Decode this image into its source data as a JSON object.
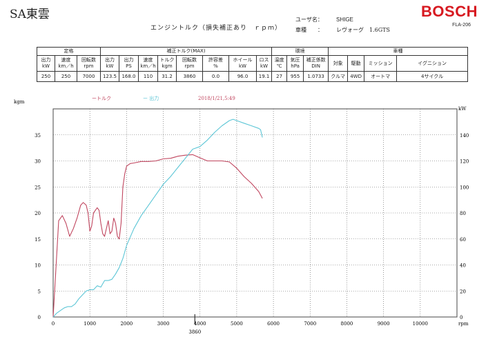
{
  "header": {
    "shop_name": "SA東雲",
    "brand": "BOSCH",
    "doc_id": "FLA-206",
    "title": "エンジントルク（損失補正あり　ｒｐｍ）",
    "user_label": "ユーザ名：",
    "user_name": "SHIGE",
    "vehicle_label": "車種　　：",
    "vehicle_name": "レヴォーグ　1.6GTS"
  },
  "table": {
    "groups": [
      "定格",
      "補正トルク(MAX)",
      "環境",
      "車種"
    ],
    "headers": [
      "出力\nkW",
      "速度\nkm／h",
      "回転数\nrpm",
      "出力\nkW",
      "出力\nPS",
      "速度\nkm／h",
      "トルク\nkgm",
      "回転数\nrpm",
      "許容差\n%",
      "ホイール\nkW",
      "ロス\nkW",
      "温度\n℃",
      "気圧\nhPa",
      "補正係数\nDIN",
      "対象",
      "駆動",
      "ミッション",
      "イグニション"
    ],
    "values": [
      "250",
      "250",
      "7000",
      "123.5",
      "168.0",
      "110",
      "31.2",
      "3860",
      "0.0",
      "96.0",
      "19.1",
      "27",
      "955",
      "1.0733",
      "クルマ",
      "4WD",
      "オートマ",
      "4サイクル"
    ]
  },
  "chart_data": {
    "type": "line",
    "legend": [
      {
        "label": "ートルク",
        "color": "#c0455e"
      },
      {
        "label": "ー 出力",
        "color": "#5cc6d6"
      }
    ],
    "timestamp": "2018/1/21,5:49",
    "xlabel": "rpm",
    "ylabel_left": "kgm",
    "ylabel_right": "kW",
    "xlim": [
      0,
      11000
    ],
    "ylim_left": [
      0,
      40
    ],
    "ylim_right": [
      0,
      160
    ],
    "x_ticks": [
      0,
      1000,
      2000,
      3000,
      4000,
      5000,
      6000,
      7000,
      8000,
      9000,
      10000
    ],
    "y_ticks_left": [
      0,
      5,
      10,
      15,
      20,
      25,
      30,
      35
    ],
    "y_ticks_right": [
      0,
      20,
      40,
      60,
      80,
      100,
      120,
      140
    ],
    "marker_rpm": "3860",
    "series": [
      {
        "name": "トルク",
        "axis": "left",
        "color": "#c0455e",
        "x": [
          0,
          150,
          250,
          350,
          450,
          550,
          650,
          750,
          820,
          900,
          950,
          1000,
          1050,
          1100,
          1200,
          1250,
          1300,
          1350,
          1400,
          1450,
          1500,
          1550,
          1600,
          1650,
          1700,
          1750,
          1800,
          1850,
          1900,
          1950,
          2000,
          2100,
          2200,
          2400,
          2600,
          2800,
          3000,
          3200,
          3400,
          3600,
          3800,
          4000,
          4200,
          4400,
          4600,
          4800,
          5000,
          5200,
          5400,
          5600,
          5700
        ],
        "y": [
          0,
          18.5,
          19.5,
          18,
          15.5,
          17,
          19,
          21.5,
          22,
          21.5,
          20,
          16.5,
          17.5,
          20,
          21,
          20.5,
          18,
          16,
          15.5,
          17,
          18.5,
          16,
          16.5,
          19,
          18,
          15.5,
          15,
          18,
          25,
          27.5,
          29,
          29.5,
          29.6,
          29.9,
          29.9,
          30,
          30.4,
          30.5,
          30.9,
          31.1,
          31.2,
          30.6,
          30.0,
          30.0,
          30.0,
          29.8,
          28.6,
          27.0,
          25.7,
          24.1,
          22.8
        ]
      },
      {
        "name": "出力",
        "axis": "right",
        "color": "#5cc6d6",
        "x": [
          0,
          100,
          200,
          300,
          400,
          500,
          600,
          700,
          800,
          900,
          1000,
          1100,
          1200,
          1300,
          1400,
          1500,
          1600,
          1700,
          1800,
          1900,
          2000,
          2200,
          2400,
          2600,
          2800,
          3000,
          3200,
          3400,
          3600,
          3800,
          4000,
          4200,
          4400,
          4600,
          4800,
          4900,
          5000,
          5200,
          5400,
          5600,
          5650,
          5700
        ],
        "y": [
          0,
          3,
          5,
          7,
          8,
          8,
          10,
          14,
          17,
          20,
          21,
          21,
          24,
          23,
          28,
          28,
          29,
          33,
          38,
          45,
          55,
          68,
          78,
          86,
          94,
          102,
          108,
          115,
          122,
          129,
          131,
          136,
          142,
          147,
          151,
          152,
          151,
          149,
          147,
          145,
          144,
          138
        ]
      }
    ]
  }
}
